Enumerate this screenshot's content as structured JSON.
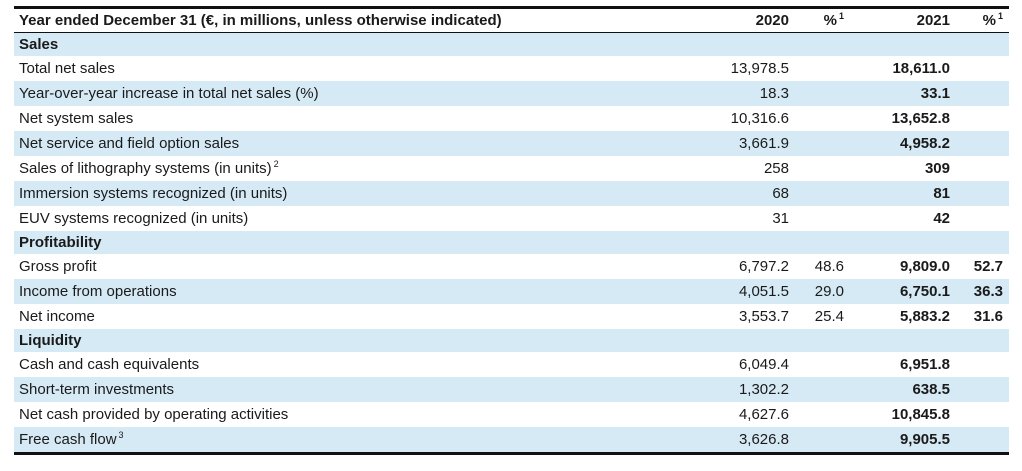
{
  "table": {
    "header": {
      "label": "Year ended December 31 (€, in millions, unless otherwise indicated)",
      "col_2020": "2020",
      "col_pct1": "%",
      "col_pct1_sup": "1",
      "col_2021": "2021",
      "col_pct2": "%",
      "col_pct2_sup": "1"
    },
    "sections": [
      {
        "title": "Sales",
        "rows": [
          {
            "label": "Total net sales",
            "sup": "",
            "v2020": "13,978.5",
            "p2020": "",
            "v2021": "18,611.0",
            "p2021": ""
          },
          {
            "label": "Year-over-year increase in total net sales (%)",
            "sup": "",
            "v2020": "18.3",
            "p2020": "",
            "v2021": "33.1",
            "p2021": ""
          },
          {
            "label": "Net system sales",
            "sup": "",
            "v2020": "10,316.6",
            "p2020": "",
            "v2021": "13,652.8",
            "p2021": ""
          },
          {
            "label": "Net service and field option sales",
            "sup": "",
            "v2020": "3,661.9",
            "p2020": "",
            "v2021": "4,958.2",
            "p2021": ""
          },
          {
            "label": "Sales of lithography systems (in units)",
            "sup": "2",
            "v2020": "258",
            "p2020": "",
            "v2021": "309",
            "p2021": ""
          },
          {
            "label": "Immersion systems recognized (in units)",
            "sup": "",
            "v2020": "68",
            "p2020": "",
            "v2021": "81",
            "p2021": ""
          },
          {
            "label": "EUV systems recognized (in units)",
            "sup": "",
            "v2020": "31",
            "p2020": "",
            "v2021": "42",
            "p2021": ""
          }
        ]
      },
      {
        "title": "Profitability",
        "rows": [
          {
            "label": "Gross profit",
            "sup": "",
            "v2020": "6,797.2",
            "p2020": "48.6",
            "v2021": "9,809.0",
            "p2021": "52.7"
          },
          {
            "label": "Income from operations",
            "sup": "",
            "v2020": "4,051.5",
            "p2020": "29.0",
            "v2021": "6,750.1",
            "p2021": "36.3"
          },
          {
            "label": "Net income",
            "sup": "",
            "v2020": "3,553.7",
            "p2020": "25.4",
            "v2021": "5,883.2",
            "p2021": "31.6"
          }
        ]
      },
      {
        "title": "Liquidity",
        "rows": [
          {
            "label": "Cash and cash equivalents",
            "sup": "",
            "v2020": "6,049.4",
            "p2020": "",
            "v2021": "6,951.8",
            "p2021": ""
          },
          {
            "label": "Short-term investments",
            "sup": "",
            "v2020": "1,302.2",
            "p2020": "",
            "v2021": "638.5",
            "p2021": ""
          },
          {
            "label": "Net cash provided by operating activities",
            "sup": "",
            "v2020": "4,627.6",
            "p2020": "",
            "v2021": "10,845.8",
            "p2021": ""
          },
          {
            "label": "Free cash flow",
            "sup": "3",
            "v2020": "3,626.8",
            "p2020": "",
            "v2021": "9,905.5",
            "p2021": ""
          }
        ]
      }
    ]
  }
}
